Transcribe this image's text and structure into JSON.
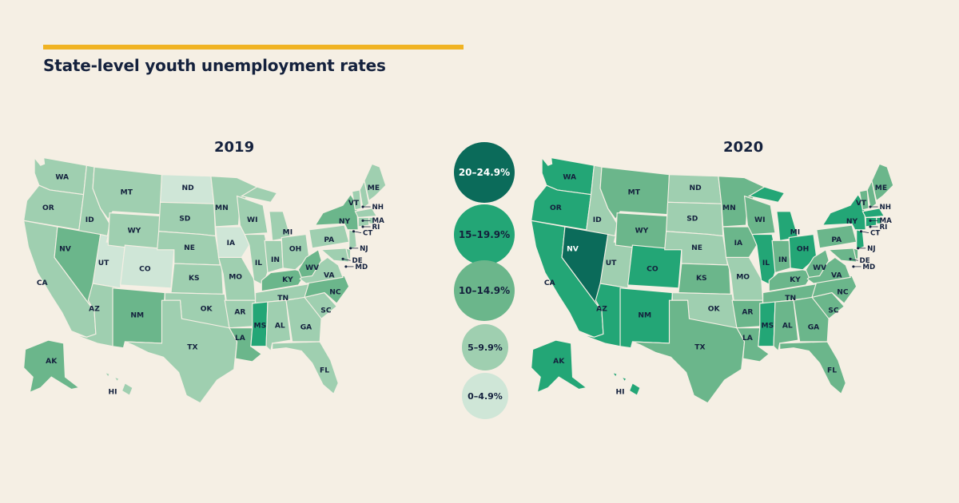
{
  "title": "State-level youth unemployment rates",
  "colors": {
    "background": "#f5efe4",
    "accent_bar": "#f0b323",
    "b0": "#cfe6d7",
    "b1": "#9fcfb0",
    "b2": "#6bb68b",
    "b3": "#23a676",
    "b4": "#0b6b5a"
  },
  "legend": [
    {
      "label": "20–24.9%",
      "bin": 4
    },
    {
      "label": "15–19.9%",
      "bin": 3
    },
    {
      "label": "10–14.9%",
      "bin": 2
    },
    {
      "label": "5–9.9%",
      "bin": 1
    },
    {
      "label": "0–4.9%",
      "bin": 0
    }
  ],
  "maps": [
    {
      "year": "2019",
      "bins": {
        "WA": 1,
        "OR": 1,
        "CA": 1,
        "ID": 1,
        "NV": 2,
        "UT": 0,
        "AZ": 1,
        "MT": 1,
        "WY": 1,
        "CO": 0,
        "NM": 2,
        "ND": 0,
        "SD": 1,
        "NE": 1,
        "KS": 1,
        "OK": 1,
        "TX": 1,
        "MN": 1,
        "IA": 0,
        "MO": 1,
        "AR": 1,
        "LA": 2,
        "WI": 1,
        "IL": 1,
        "MI": 1,
        "IN": 1,
        "OH": 1,
        "KY": 2,
        "TN": 1,
        "MS": 3,
        "AL": 1,
        "GA": 1,
        "FL": 1,
        "SC": 1,
        "NC": 2,
        "VA": 1,
        "WV": 2,
        "PA": 1,
        "NY": 2,
        "VT": 1,
        "ME": 1,
        "NH": 1,
        "MA": 1,
        "RI": 1,
        "CT": 1,
        "NJ": 1,
        "DE": 1,
        "MD": 1,
        "AK": 2,
        "HI": 1
      }
    },
    {
      "year": "2020",
      "bins": {
        "WA": 3,
        "OR": 3,
        "CA": 3,
        "ID": 1,
        "NV": 4,
        "UT": 1,
        "AZ": 3,
        "MT": 2,
        "WY": 2,
        "CO": 3,
        "NM": 3,
        "ND": 1,
        "SD": 1,
        "NE": 1,
        "KS": 2,
        "OK": 1,
        "TX": 2,
        "MN": 2,
        "IA": 2,
        "MO": 1,
        "AR": 2,
        "LA": 2,
        "WI": 2,
        "IL": 3,
        "MI": 3,
        "IN": 2,
        "OH": 3,
        "KY": 2,
        "TN": 2,
        "MS": 3,
        "AL": 2,
        "GA": 2,
        "FL": 2,
        "SC": 2,
        "NC": 2,
        "VA": 2,
        "WV": 2,
        "PA": 2,
        "NY": 3,
        "VT": 2,
        "ME": 2,
        "NH": 2,
        "MA": 3,
        "RI": 3,
        "CT": 3,
        "NJ": 3,
        "DE": 2,
        "MD": 2,
        "AK": 3,
        "HI": 3
      }
    }
  ]
}
